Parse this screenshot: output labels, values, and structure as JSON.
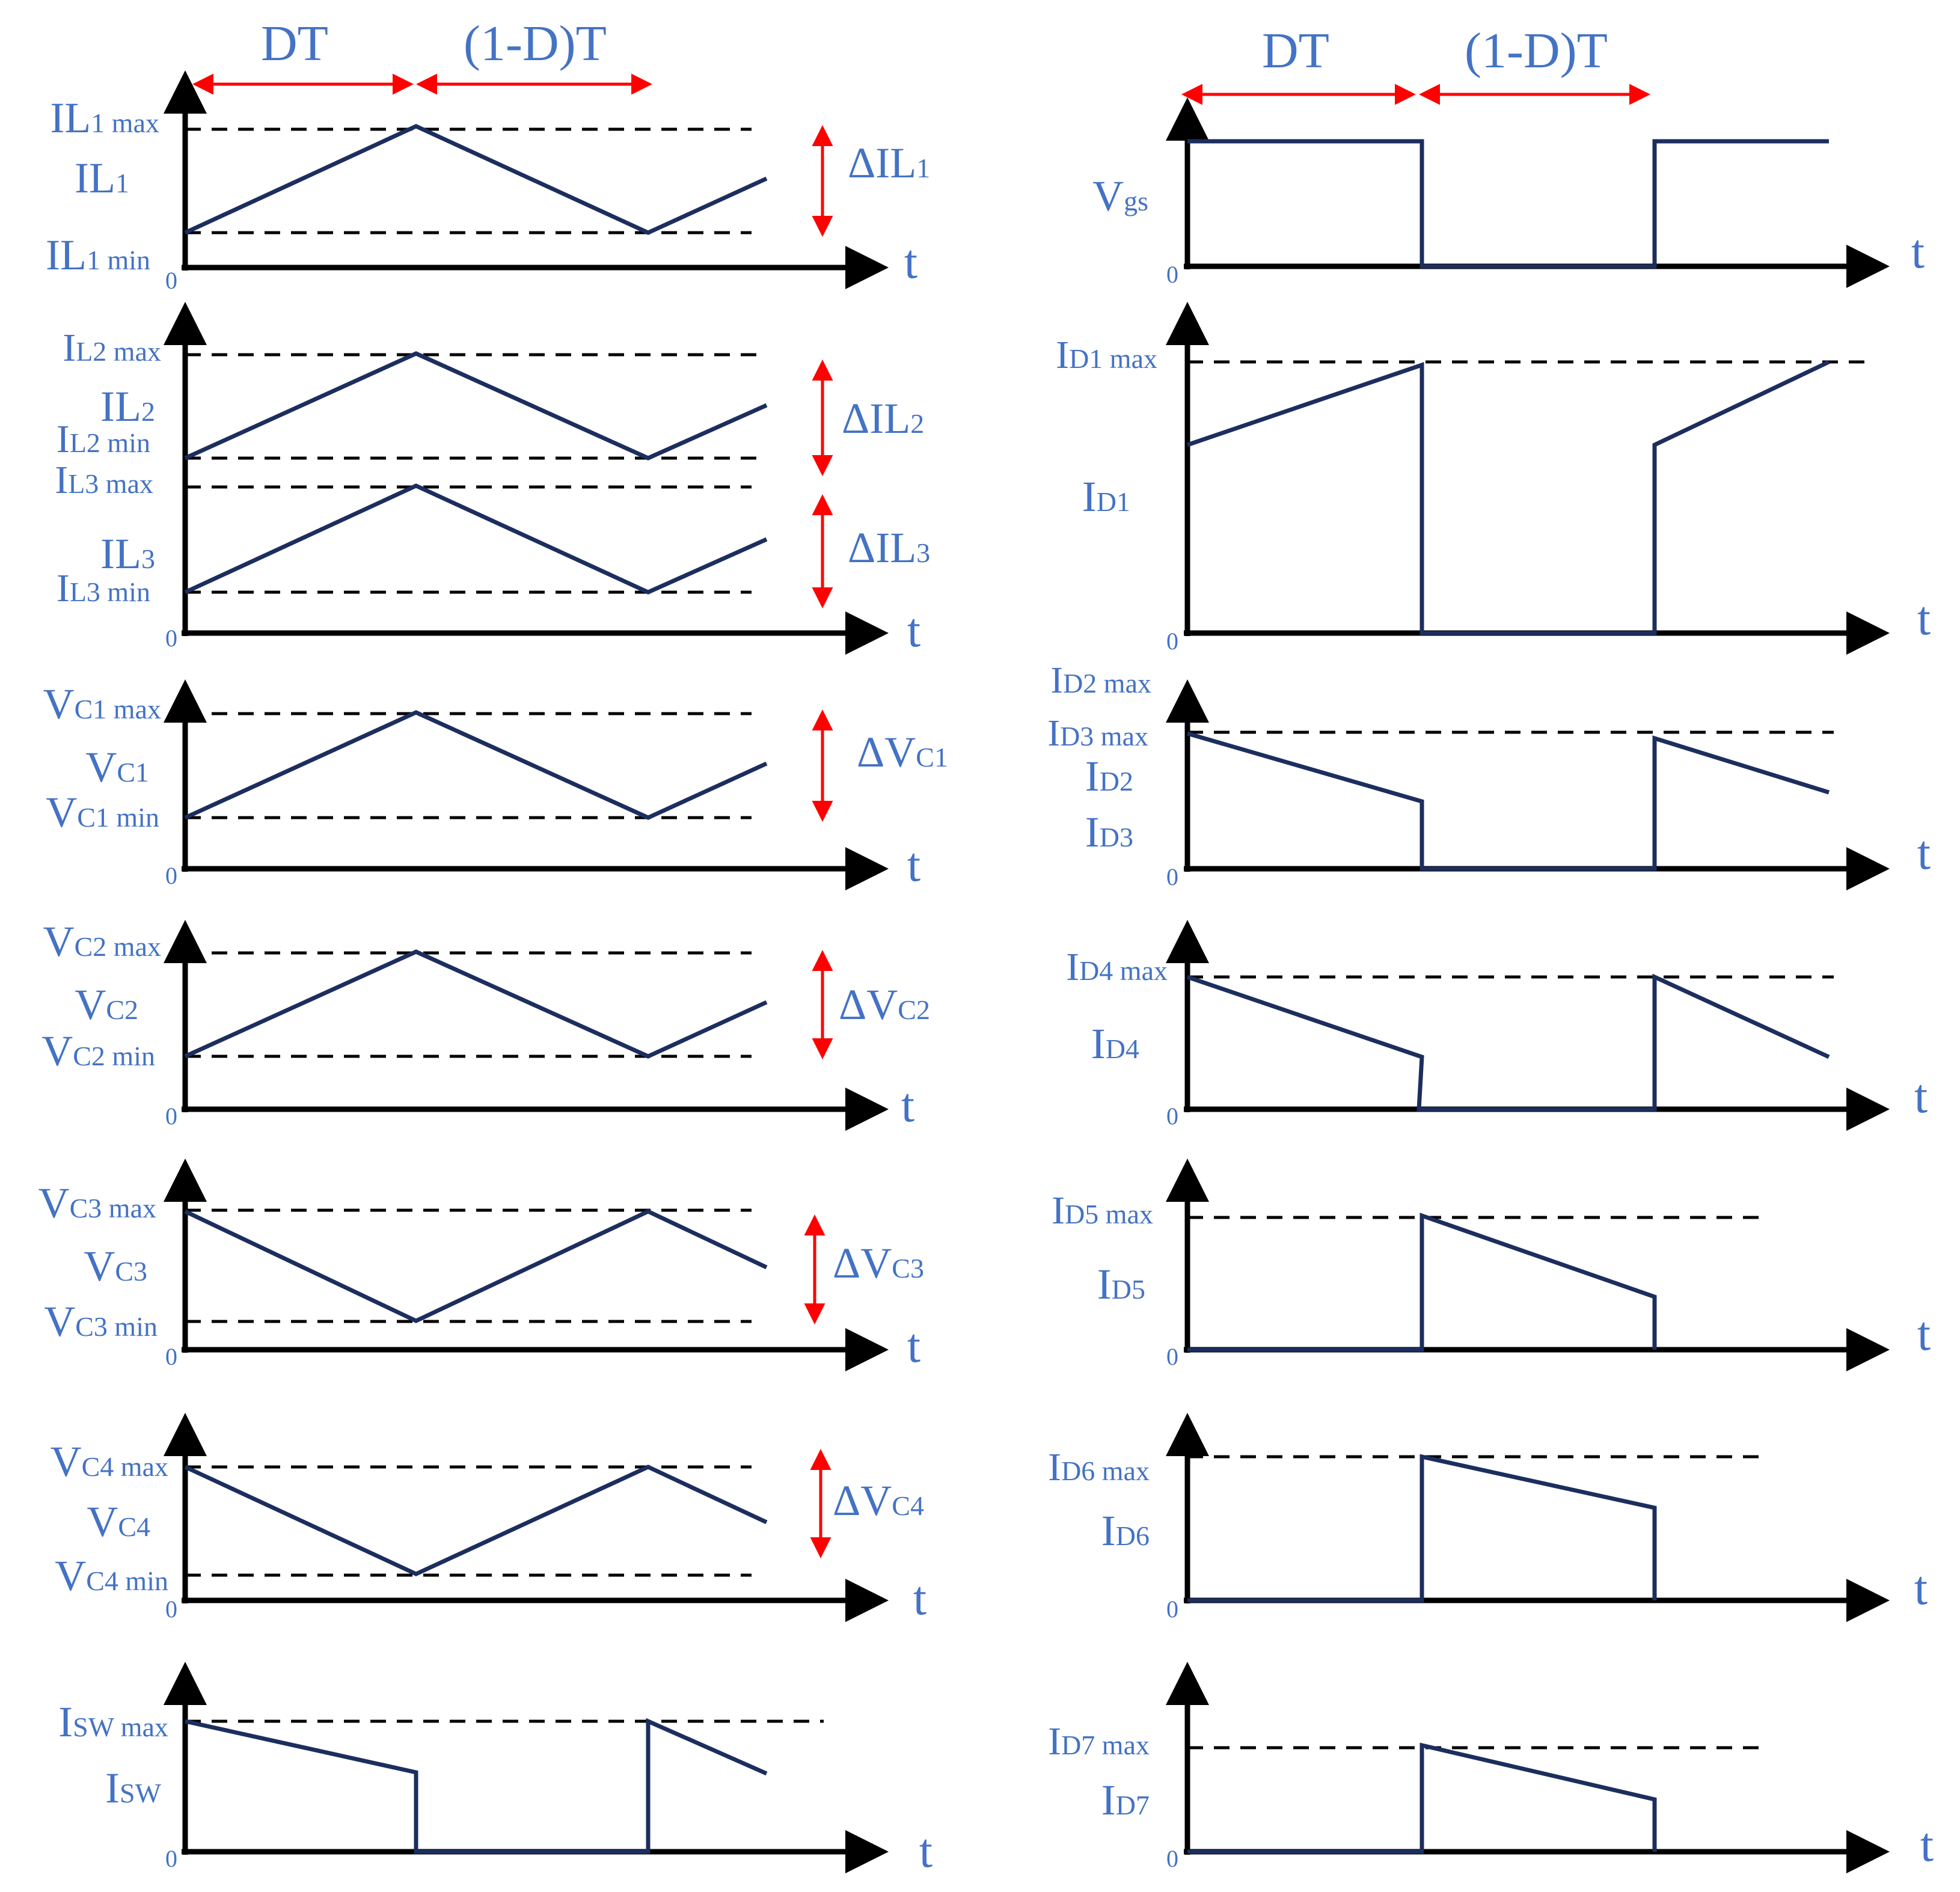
{
  "colors": {
    "wave": "#1c2e5e",
    "axis": "#000000",
    "label": "#4472c4",
    "arrow": "#ff0000"
  },
  "phases": {
    "dt": "DT",
    "rest": "(1-D)T"
  },
  "time_label": "t",
  "origin_label": "0",
  "left_panels": [
    {
      "id": "il1",
      "labels": [
        {
          "main": "IL",
          "sub": "1 max"
        },
        {
          "main": "IL",
          "sub": "1"
        },
        {
          "main": "IL",
          "sub": "1 min"
        }
      ],
      "delta": {
        "main": "ΔIL",
        "sub": "1"
      }
    },
    {
      "id": "il23",
      "labels": [
        {
          "main": "I",
          "sub": "L2 max"
        },
        {
          "main": "IL",
          "sub": "2"
        },
        {
          "main": "I",
          "sub": "L2 min"
        },
        {
          "main": "I",
          "sub": "L3 max"
        },
        {
          "main": "IL",
          "sub": "3"
        },
        {
          "main": "I",
          "sub": "L3 min"
        }
      ],
      "delta": [
        {
          "main": "ΔIL",
          "sub": "2"
        },
        {
          "main": "ΔIL",
          "sub": "3"
        }
      ]
    },
    {
      "id": "vc1",
      "labels": [
        {
          "main": "V",
          "sub": "C1 max"
        },
        {
          "main": "V",
          "sub": "C1"
        },
        {
          "main": "V",
          "sub": "C1 min"
        }
      ],
      "delta": {
        "main": "ΔV",
        "sub": "C1"
      }
    },
    {
      "id": "vc2",
      "labels": [
        {
          "main": "V",
          "sub": "C2 max"
        },
        {
          "main": "V",
          "sub": "C2"
        },
        {
          "main": "V",
          "sub": "C2 min"
        }
      ],
      "delta": {
        "main": "ΔV",
        "sub": "C2"
      }
    },
    {
      "id": "vc3",
      "labels": [
        {
          "main": "V",
          "sub": "C3 max"
        },
        {
          "main": "V",
          "sub": "C3"
        },
        {
          "main": "V",
          "sub": "C3 min"
        }
      ],
      "delta": {
        "main": "ΔV",
        "sub": "C3"
      }
    },
    {
      "id": "vc4",
      "labels": [
        {
          "main": "V",
          "sub": "C4 max"
        },
        {
          "main": "V",
          "sub": "C4"
        },
        {
          "main": "V",
          "sub": "C4 min"
        }
      ],
      "delta": {
        "main": "ΔV",
        "sub": "C4"
      }
    },
    {
      "id": "isw",
      "labels": [
        {
          "main": "I",
          "sub": "SW max"
        },
        {
          "main": "I",
          "sub": "SW"
        }
      ]
    }
  ],
  "right_panels": [
    {
      "id": "vgs",
      "labels": [
        {
          "main": "V",
          "sub": "gs"
        }
      ]
    },
    {
      "id": "id1",
      "labels": [
        {
          "main": "I",
          "sub": "D1 max"
        },
        {
          "main": "I",
          "sub": "D1"
        }
      ]
    },
    {
      "id": "id23",
      "labels": [
        {
          "main": "I",
          "sub": "D2 max"
        },
        {
          "main": "I",
          "sub": "D3 max"
        },
        {
          "main": "I",
          "sub": "D2"
        },
        {
          "main": "I",
          "sub": "D3"
        }
      ]
    },
    {
      "id": "id4",
      "labels": [
        {
          "main": "I",
          "sub": "D4 max"
        },
        {
          "main": "I",
          "sub": "D4"
        }
      ]
    },
    {
      "id": "id5",
      "labels": [
        {
          "main": "I",
          "sub": "D5 max"
        },
        {
          "main": "I",
          "sub": "D5"
        }
      ]
    },
    {
      "id": "id6",
      "labels": [
        {
          "main": "I",
          "sub": "D6 max"
        },
        {
          "main": "I",
          "sub": "D6"
        }
      ]
    },
    {
      "id": "id7",
      "labels": [
        {
          "main": "I",
          "sub": "D7 max"
        },
        {
          "main": "I",
          "sub": "D7"
        }
      ]
    }
  ]
}
